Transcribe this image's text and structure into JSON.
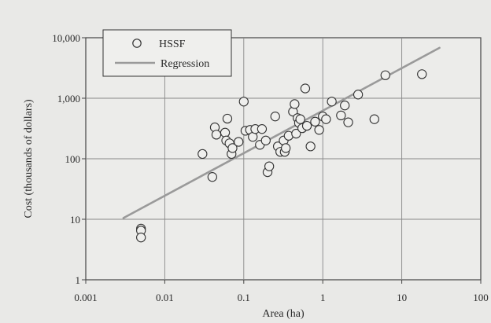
{
  "chart_data": {
    "type": "scatter",
    "xlabel": "Area (ha)",
    "ylabel": "Cost (thousands of dollars)",
    "x_scale": "log",
    "y_scale": "log",
    "xlim": [
      0.001,
      100
    ],
    "ylim": [
      1,
      10000
    ],
    "x_ticks": [
      0.001,
      0.01,
      0.1,
      1,
      10,
      100
    ],
    "x_tick_labels": [
      "0.001",
      "0.01",
      "0.1",
      "1",
      "10",
      "100"
    ],
    "y_ticks": [
      1,
      10,
      100,
      1000,
      10000
    ],
    "y_tick_labels": [
      "1",
      "10",
      "100",
      "1,000",
      "10,000"
    ],
    "grid": "on",
    "legend": {
      "placement": "top-left",
      "entries": [
        {
          "label": "HSSF",
          "marker": "open-circle"
        },
        {
          "label": "Regression",
          "marker": "line"
        }
      ]
    },
    "series": [
      {
        "name": "HSSF",
        "style": "open-circle",
        "points": [
          [
            0.005,
            7
          ],
          [
            0.005,
            6.5
          ],
          [
            0.005,
            5
          ],
          [
            0.03,
            120
          ],
          [
            0.04,
            50
          ],
          [
            0.043,
            330
          ],
          [
            0.045,
            250
          ],
          [
            0.058,
            270
          ],
          [
            0.06,
            200
          ],
          [
            0.062,
            460
          ],
          [
            0.066,
            180
          ],
          [
            0.07,
            120
          ],
          [
            0.072,
            150
          ],
          [
            0.086,
            190
          ],
          [
            0.1,
            880
          ],
          [
            0.105,
            290
          ],
          [
            0.12,
            300
          ],
          [
            0.13,
            230
          ],
          [
            0.14,
            310
          ],
          [
            0.16,
            170
          ],
          [
            0.17,
            310
          ],
          [
            0.19,
            200
          ],
          [
            0.2,
            60
          ],
          [
            0.21,
            75
          ],
          [
            0.25,
            500
          ],
          [
            0.27,
            160
          ],
          [
            0.29,
            130
          ],
          [
            0.32,
            200
          ],
          [
            0.33,
            130
          ],
          [
            0.34,
            150
          ],
          [
            0.37,
            240
          ],
          [
            0.42,
            600
          ],
          [
            0.44,
            800
          ],
          [
            0.46,
            260
          ],
          [
            0.48,
            470
          ],
          [
            0.5,
            390
          ],
          [
            0.52,
            450
          ],
          [
            0.55,
            320
          ],
          [
            0.6,
            1450
          ],
          [
            0.63,
            350
          ],
          [
            0.7,
            160
          ],
          [
            0.8,
            410
          ],
          [
            0.9,
            300
          ],
          [
            1.0,
            500
          ],
          [
            1.1,
            450
          ],
          [
            1.3,
            880
          ],
          [
            1.7,
            520
          ],
          [
            1.9,
            760
          ],
          [
            2.1,
            400
          ],
          [
            2.8,
            1150
          ],
          [
            4.5,
            450
          ],
          [
            6.2,
            2400
          ],
          [
            18,
            2500
          ]
        ]
      },
      {
        "name": "Regression",
        "style": "line",
        "color": "#9a9a9a",
        "points": [
          [
            0.003,
            10.5
          ],
          [
            30,
            6800
          ]
        ]
      }
    ]
  }
}
